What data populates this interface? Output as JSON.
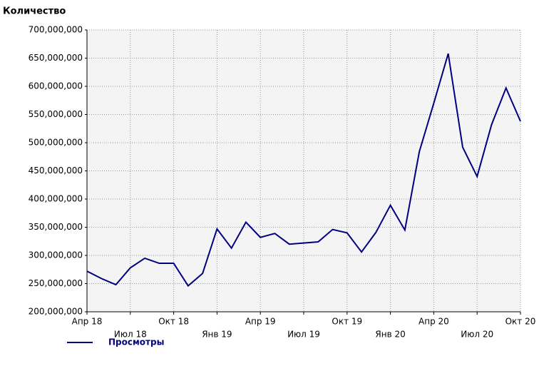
{
  "chart_data": {
    "type": "line",
    "title": "Количество",
    "categories": [
      "Апр 18",
      null,
      null,
      "Июл 18",
      null,
      null,
      "Окт 18",
      null,
      null,
      "Янв 19",
      null,
      null,
      "Апр 19",
      null,
      null,
      "Июл 19",
      null,
      null,
      "Окт 19",
      null,
      null,
      "Янв 20",
      null,
      null,
      "Апр 20",
      null,
      null,
      "Июл 20",
      null,
      null,
      "Окт 20"
    ],
    "series": [
      {
        "name": "Просмотры",
        "color": "#000080",
        "values": [
          272000000,
          259000000,
          248000000,
          278000000,
          295000000,
          286000000,
          286000000,
          246000000,
          268000000,
          347000000,
          313000000,
          359000000,
          332000000,
          339000000,
          320000000,
          322000000,
          324000000,
          346000000,
          340000000,
          306000000,
          341000000,
          389000000,
          345000000,
          484000000,
          570000000,
          658000000,
          492000000,
          440000000,
          532000000,
          597000000,
          538000000
        ]
      }
    ],
    "ylim": [
      200000000,
      700000000
    ],
    "yticks": [
      {
        "value": 200000000,
        "label": "200,000,000"
      },
      {
        "value": 250000000,
        "label": "250,000,000"
      },
      {
        "value": 300000000,
        "label": "300,000,000"
      },
      {
        "value": 350000000,
        "label": "350,000,000"
      },
      {
        "value": 400000000,
        "label": "400,000,000"
      },
      {
        "value": 450000000,
        "label": "450,000,000"
      },
      {
        "value": 500000000,
        "label": "500,000,000"
      },
      {
        "value": 550000000,
        "label": "550,000,000"
      },
      {
        "value": 600000000,
        "label": "600,000,000"
      },
      {
        "value": 650000000,
        "label": "650,000,000"
      },
      {
        "value": 700000000,
        "label": "700,000,000"
      }
    ],
    "grid": true,
    "legend": "bottom"
  }
}
